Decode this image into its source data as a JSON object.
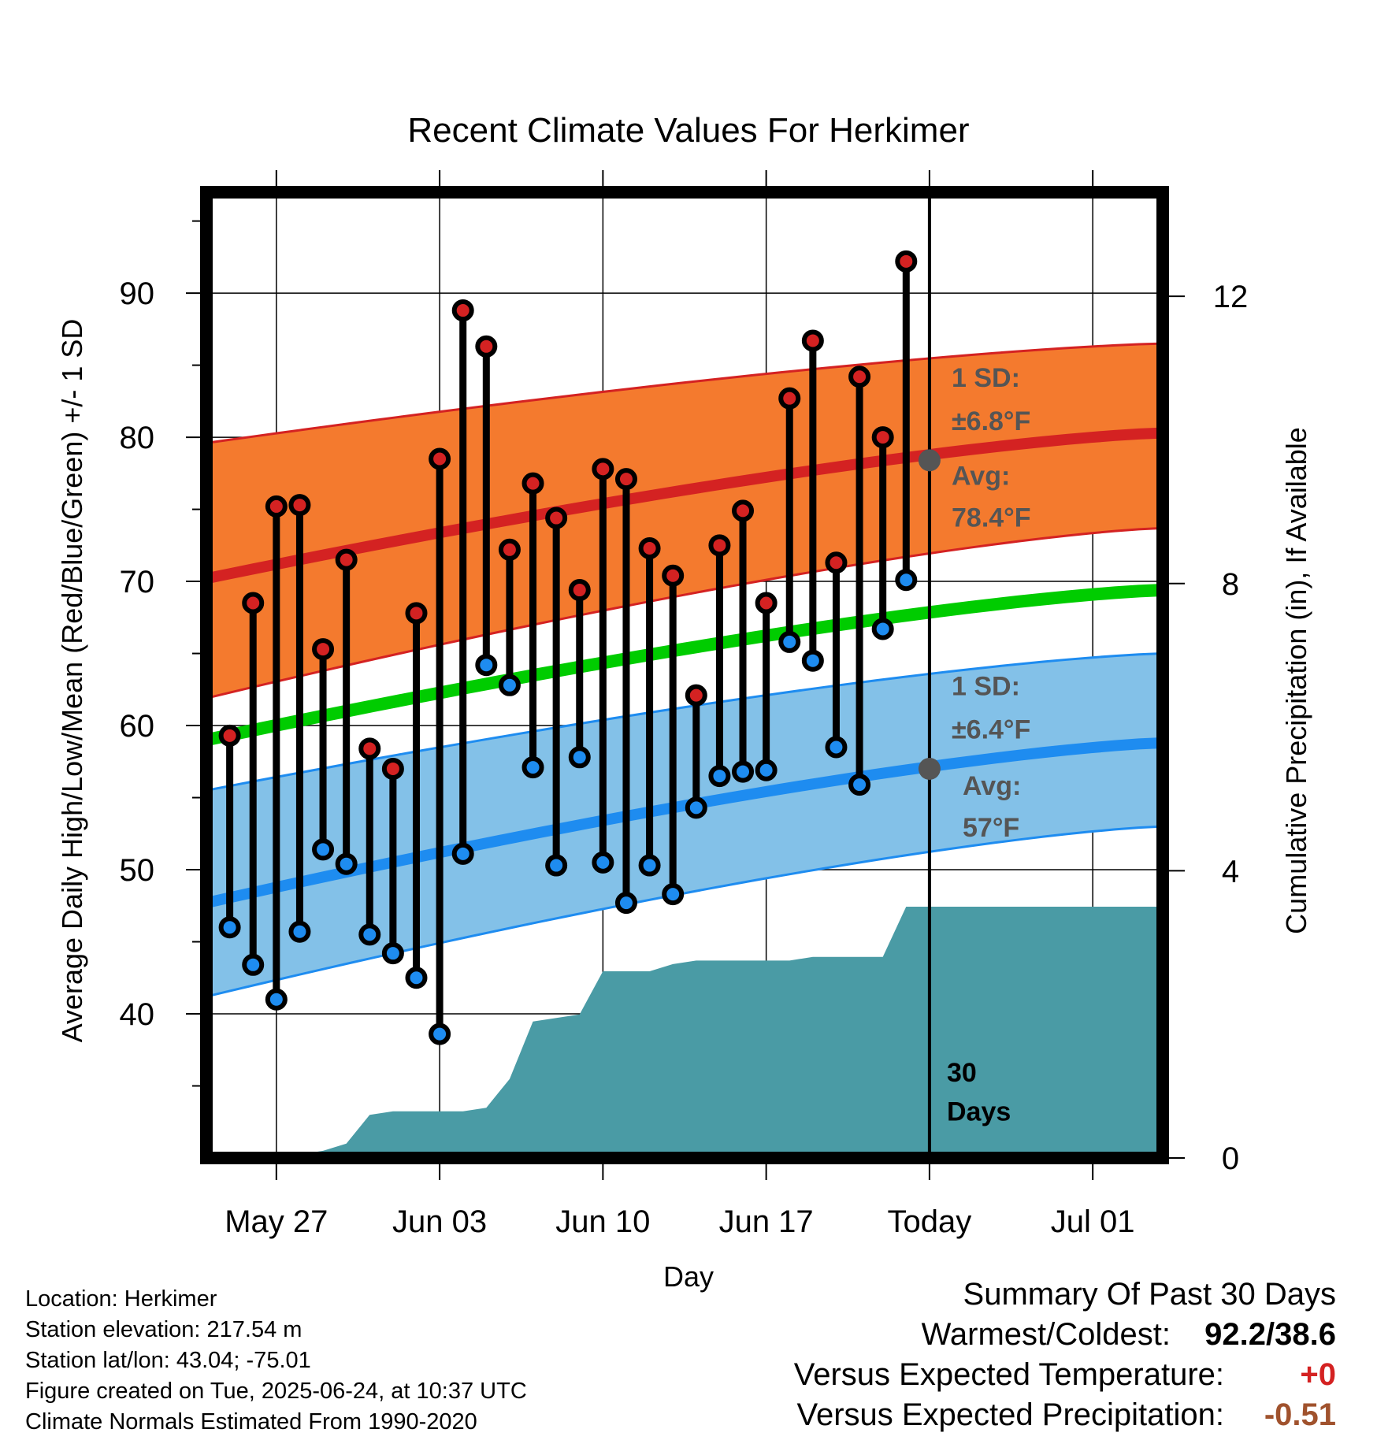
{
  "chart_data": {
    "type": "line",
    "title": "Recent Climate Values For Herkimer",
    "xlabel": "Day",
    "ylabel": "Average Daily High/Low/Mean (Red/Blue/Green) +/- 1 SD",
    "y2label": "Cumulative Precipitation (in), If Available",
    "ylim": [
      30,
      97
    ],
    "y2lim": [
      0,
      13.45
    ],
    "x_range_days": [
      "2025-05-24",
      "2025-07-04"
    ],
    "x_ticks": [
      {
        "date": "2025-05-27",
        "label": "May 27"
      },
      {
        "date": "2025-06-03",
        "label": "Jun 03"
      },
      {
        "date": "2025-06-10",
        "label": "Jun 10"
      },
      {
        "date": "2025-06-17",
        "label": "Jun 17"
      },
      {
        "date": "2025-06-24",
        "label": "Today"
      },
      {
        "date": "2025-07-01",
        "label": "Jul 01"
      }
    ],
    "y_ticks": [
      40,
      50,
      60,
      70,
      80,
      90
    ],
    "y2_ticks": [
      0,
      4,
      8,
      12
    ],
    "grid": true,
    "today": "2025-06-24",
    "days": [
      "2025-05-25",
      "2025-05-26",
      "2025-05-27",
      "2025-05-28",
      "2025-05-29",
      "2025-05-30",
      "2025-05-31",
      "2025-06-01",
      "2025-06-02",
      "2025-06-03",
      "2025-06-04",
      "2025-06-05",
      "2025-06-06",
      "2025-06-07",
      "2025-06-08",
      "2025-06-09",
      "2025-06-10",
      "2025-06-11",
      "2025-06-12",
      "2025-06-13",
      "2025-06-14",
      "2025-06-15",
      "2025-06-16",
      "2025-06-17",
      "2025-06-18",
      "2025-06-19",
      "2025-06-20",
      "2025-06-21",
      "2025-06-22",
      "2025-06-23"
    ],
    "series": [
      {
        "name": "Daily High",
        "color": "#d42222",
        "values": [
          59.3,
          68.5,
          75.2,
          75.3,
          65.3,
          71.5,
          58.4,
          57.0,
          67.8,
          78.5,
          88.8,
          86.3,
          72.2,
          76.8,
          74.4,
          69.4,
          77.8,
          77.1,
          72.3,
          70.4,
          62.1,
          72.5,
          74.9,
          68.5,
          82.7,
          86.7,
          71.3,
          84.2,
          80.0,
          92.2
        ]
      },
      {
        "name": "Daily Low",
        "color": "#1e8cf0",
        "values": [
          46.0,
          43.4,
          41.0,
          45.7,
          51.4,
          50.4,
          45.5,
          44.2,
          42.5,
          38.6,
          51.1,
          64.2,
          62.8,
          57.1,
          50.3,
          57.8,
          50.5,
          47.7,
          50.3,
          48.3,
          54.3,
          56.5,
          56.8,
          56.9,
          65.8,
          64.5,
          58.5,
          55.9,
          66.7,
          70.1
        ]
      }
    ],
    "normals": {
      "dates": [
        "2025-05-24",
        "2025-07-04"
      ],
      "high_avg": [
        70.2,
        80.3
      ],
      "high_sd_band": [
        [
          61.9,
          79.6
        ],
        [
          73.7,
          86.5
        ]
      ],
      "low_avg": [
        47.7,
        58.8
      ],
      "low_sd_band": [
        [
          41.2,
          55.5
        ],
        [
          53.0,
          65.0
        ]
      ],
      "mean_avg": [
        59.0,
        69.4
      ]
    },
    "precipitation_cumulative": {
      "color": "#4a9ba5",
      "points": [
        [
          "2025-05-24",
          0
        ],
        [
          "2025-05-27",
          0
        ],
        [
          "2025-05-28",
          0.05
        ],
        [
          "2025-05-29",
          0.1
        ],
        [
          "2025-05-30",
          0.2
        ],
        [
          "2025-05-31",
          0.6
        ],
        [
          "2025-06-01",
          0.65
        ],
        [
          "2025-06-02",
          0.65
        ],
        [
          "2025-06-03",
          0.65
        ],
        [
          "2025-06-04",
          0.65
        ],
        [
          "2025-06-05",
          0.7
        ],
        [
          "2025-06-06",
          1.1
        ],
        [
          "2025-06-07",
          1.9
        ],
        [
          "2025-06-08",
          1.95
        ],
        [
          "2025-06-09",
          2.0
        ],
        [
          "2025-06-10",
          2.6
        ],
        [
          "2025-06-11",
          2.6
        ],
        [
          "2025-06-12",
          2.6
        ],
        [
          "2025-06-13",
          2.7
        ],
        [
          "2025-06-14",
          2.75
        ],
        [
          "2025-06-15",
          2.75
        ],
        [
          "2025-06-16",
          2.75
        ],
        [
          "2025-06-17",
          2.75
        ],
        [
          "2025-06-18",
          2.75
        ],
        [
          "2025-06-19",
          2.8
        ],
        [
          "2025-06-20",
          2.8
        ],
        [
          "2025-06-21",
          2.8
        ],
        [
          "2025-06-22",
          2.8
        ],
        [
          "2025-06-23",
          3.5
        ],
        [
          "2025-06-24",
          3.5
        ],
        [
          "2025-07-04",
          3.5
        ]
      ]
    },
    "annotations": {
      "high_sd": [
        "1 SD:",
        "±6.8°F"
      ],
      "high_avg": [
        "Avg:",
        "78.4°F"
      ],
      "low_sd": [
        "1 SD:",
        "±6.4°F"
      ],
      "low_avg": [
        "Avg:",
        "57°F"
      ],
      "high_avg_value": 78.4,
      "low_avg_value": 57,
      "window": [
        "30",
        "Days"
      ]
    }
  },
  "info": {
    "location": "Location: Herkimer",
    "elevation": "Station elevation: 217.54 m",
    "latlon": "Station lat/lon: 43.04; -75.01",
    "created": "Figure created on Tue, 2025-06-24, at 10:37 UTC",
    "normals": "Climate Normals Estimated From 1990-2020"
  },
  "summary": {
    "title": "Summary Of Past 30 Days",
    "warmest_coldest_label": "Warmest/Coldest:",
    "warmest_coldest_value": "92.2/38.6",
    "temp_label": "Versus Expected Temperature:",
    "temp_value": "+0",
    "precip_label": "Versus Expected Precipitation:",
    "precip_value": "-0.51"
  }
}
